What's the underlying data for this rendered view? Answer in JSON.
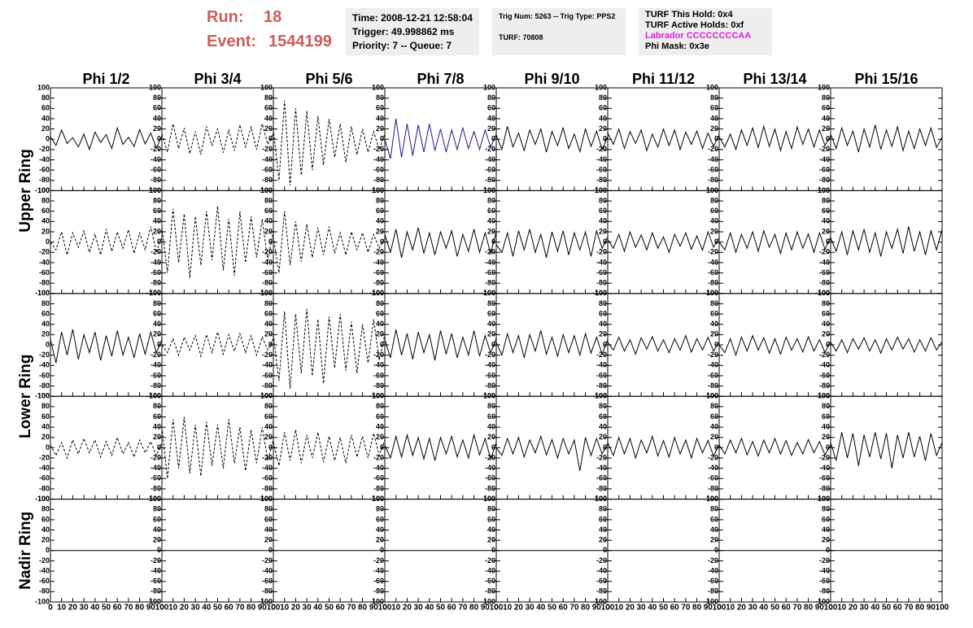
{
  "header": {
    "run_label": "Run:",
    "run": "18",
    "event_label": "Event:",
    "event": "1544199",
    "box1": [
      "Time: 2008-12-21 12:58:04",
      "Trigger: 49.998862 ms",
      "Priority: 7 -- Queue: 7"
    ],
    "box2": [
      "Trig Num: 5263 -- Trig Type: PPS2",
      "TURF: 70808"
    ],
    "box3": [
      "TURF This Hold: 0x4",
      "TURF Active Holds: 0xf",
      "Labrador CCCCCCCCAA",
      "Phi Mask: 0x3e"
    ]
  },
  "columns": [
    "Phi 1/2",
    "Phi 3/4",
    "Phi 5/6",
    "Phi 7/8",
    "Phi 9/10",
    "Phi 11/12",
    "Phi 13/14",
    "Phi 15/16"
  ],
  "rows": [
    "Upper Ring",
    "Lower Ring",
    "Nadir Ring"
  ],
  "chart_data": {
    "type": "line",
    "xlim": [
      0,
      100
    ],
    "ylim": [
      -100,
      100
    ],
    "xticks": [
      0,
      10,
      20,
      30,
      40,
      50,
      60,
      70,
      80,
      90,
      100
    ],
    "yticks": [
      -100,
      -80,
      -60,
      -40,
      -20,
      0,
      20,
      40,
      60,
      80,
      100
    ],
    "x": [
      0,
      5,
      10,
      15,
      20,
      25,
      30,
      35,
      40,
      45,
      50,
      55,
      60,
      65,
      70,
      75,
      80,
      85,
      90,
      95,
      100
    ],
    "panels": [
      {
        "color": "#000000",
        "dashed": false,
        "values": [
          5,
          -12,
          18,
          -8,
          3,
          -15,
          10,
          -20,
          14,
          -6,
          9,
          -18,
          22,
          -10,
          4,
          -14,
          19,
          -9,
          12,
          -17,
          6
        ]
      },
      {
        "color": "#000000",
        "dashed": true,
        "values": [
          10,
          -25,
          30,
          -18,
          22,
          -28,
          15,
          -30,
          25,
          -12,
          20,
          -26,
          18,
          -22,
          28,
          -15,
          24,
          -20,
          30,
          -10,
          12
        ]
      },
      {
        "color": "#000000",
        "dashed": true,
        "values": [
          20,
          -80,
          75,
          -90,
          60,
          -70,
          55,
          -60,
          45,
          -50,
          40,
          -35,
          30,
          -45,
          25,
          -30,
          20,
          -25,
          15,
          -20,
          10
        ]
      },
      {
        "color": "#1a1a8c",
        "dashed": false,
        "values": [
          0,
          -38,
          40,
          -35,
          30,
          -32,
          28,
          -25,
          30,
          -22,
          20,
          -25,
          18,
          -20,
          22,
          -18,
          15,
          -20,
          18,
          -15,
          10
        ]
      },
      {
        "color": "#000000",
        "dashed": false,
        "values": [
          8,
          -20,
          25,
          -15,
          12,
          -22,
          18,
          -10,
          20,
          -25,
          15,
          -12,
          22,
          -18,
          10,
          -24,
          20,
          -14,
          16,
          -20,
          5
        ]
      },
      {
        "color": "#000000",
        "dashed": false,
        "values": [
          12,
          -10,
          20,
          -18,
          15,
          -8,
          18,
          -22,
          10,
          -15,
          20,
          -12,
          18,
          -20,
          14,
          -10,
          16,
          -18,
          12,
          -14,
          8
        ]
      },
      {
        "color": "#000000",
        "dashed": false,
        "values": [
          5,
          -15,
          10,
          -20,
          18,
          -12,
          22,
          -16,
          25,
          -14,
          20,
          -22,
          15,
          -18,
          24,
          -10,
          20,
          -15,
          18,
          -12,
          6
        ]
      },
      {
        "color": "#000000",
        "dashed": false,
        "values": [
          10,
          -18,
          22,
          -12,
          16,
          -25,
          20,
          -15,
          28,
          -20,
          18,
          -14,
          24,
          -22,
          16,
          -18,
          20,
          -12,
          22,
          -16,
          4
        ]
      },
      {
        "color": "#000000",
        "dashed": true,
        "values": [
          0,
          -15,
          20,
          -25,
          18,
          -10,
          22,
          -20,
          15,
          -25,
          25,
          -18,
          20,
          -12,
          24,
          -22,
          18,
          -15,
          30,
          -20,
          10
        ]
      },
      {
        "color": "#000000",
        "dashed": true,
        "values": [
          30,
          -60,
          65,
          -40,
          55,
          -70,
          50,
          -45,
          60,
          -35,
          70,
          -55,
          45,
          -65,
          60,
          -40,
          50,
          -30,
          45,
          -35,
          20
        ]
      },
      {
        "color": "#000000",
        "dashed": true,
        "values": [
          10,
          -60,
          60,
          -45,
          40,
          -38,
          35,
          -30,
          28,
          -25,
          30,
          -22,
          18,
          -25,
          20,
          -15,
          18,
          -20,
          15,
          -12,
          8
        ]
      },
      {
        "color": "#000000",
        "dashed": false,
        "values": [
          15,
          -20,
          25,
          -30,
          20,
          -15,
          28,
          -22,
          18,
          -25,
          20,
          -12,
          22,
          -28,
          15,
          -18,
          25,
          -20,
          18,
          -22,
          20
        ]
      },
      {
        "color": "#000000",
        "dashed": false,
        "values": [
          -5,
          -20,
          18,
          -28,
          22,
          -15,
          25,
          -20,
          15,
          -30,
          20,
          -18,
          22,
          -25,
          18,
          -15,
          20,
          -28,
          22,
          -12,
          10
        ]
      },
      {
        "color": "#000000",
        "dashed": false,
        "values": [
          5,
          -12,
          15,
          -18,
          20,
          -10,
          14,
          -15,
          18,
          -12,
          10,
          -20,
          15,
          -8,
          18,
          -14,
          12,
          -16,
          20,
          -10,
          8
        ]
      },
      {
        "color": "#000000",
        "dashed": false,
        "values": [
          0,
          -15,
          18,
          -20,
          15,
          -12,
          20,
          -18,
          22,
          -10,
          15,
          -22,
          18,
          -15,
          20,
          -12,
          16,
          -20,
          18,
          -14,
          10
        ]
      },
      {
        "color": "#000000",
        "dashed": false,
        "values": [
          8,
          -18,
          20,
          -25,
          22,
          -15,
          25,
          -20,
          18,
          -28,
          20,
          -12,
          25,
          -22,
          30,
          -18,
          20,
          -25,
          22,
          -15,
          25
        ]
      },
      {
        "color": "#000000",
        "dashed": false,
        "values": [
          10,
          -35,
          25,
          -20,
          30,
          -28,
          20,
          -15,
          25,
          -30,
          18,
          -22,
          28,
          -20,
          15,
          -25,
          22,
          -18,
          25,
          -15,
          10
        ]
      },
      {
        "color": "#000000",
        "dashed": true,
        "values": [
          0,
          -15,
          12,
          -20,
          15,
          -10,
          18,
          -22,
          20,
          -15,
          25,
          -18,
          20,
          -12,
          22,
          -15,
          18,
          -20,
          15,
          -10,
          12
        ]
      },
      {
        "color": "#000000",
        "dashed": true,
        "values": [
          20,
          -70,
          65,
          -85,
          60,
          -55,
          70,
          -60,
          50,
          -75,
          55,
          -45,
          60,
          -50,
          45,
          -55,
          40,
          -35,
          50,
          -30,
          20
        ]
      },
      {
        "color": "#000000",
        "dashed": false,
        "values": [
          10,
          -25,
          30,
          -20,
          22,
          -28,
          25,
          -15,
          20,
          -30,
          28,
          -18,
          22,
          -25,
          15,
          -20,
          28,
          -22,
          18,
          -15,
          12
        ]
      },
      {
        "color": "#000000",
        "dashed": false,
        "values": [
          5,
          -20,
          22,
          -15,
          18,
          -25,
          20,
          -12,
          28,
          -18,
          15,
          -22,
          20,
          -15,
          18,
          -20,
          22,
          -16,
          15,
          -18,
          10
        ]
      },
      {
        "color": "#000000",
        "dashed": false,
        "values": [
          5,
          -10,
          15,
          -12,
          10,
          -18,
          14,
          -8,
          16,
          -12,
          10,
          -15,
          12,
          -10,
          18,
          -14,
          12,
          -10,
          15,
          -12,
          6
        ]
      },
      {
        "color": "#000000",
        "dashed": false,
        "values": [
          0,
          -15,
          12,
          -20,
          15,
          -12,
          18,
          -10,
          14,
          -16,
          12,
          -18,
          15,
          -10,
          12,
          -14,
          16,
          -12,
          10,
          -15,
          8
        ]
      },
      {
        "color": "#000000",
        "dashed": false,
        "values": [
          5,
          -12,
          10,
          -15,
          12,
          -8,
          14,
          -12,
          10,
          -16,
          12,
          -10,
          15,
          -8,
          12,
          -14,
          10,
          -12,
          14,
          -10,
          6
        ]
      },
      {
        "color": "#000000",
        "dashed": true,
        "values": [
          5,
          -15,
          10,
          -20,
          15,
          -12,
          18,
          -10,
          15,
          -18,
          12,
          -15,
          20,
          -12,
          10,
          -18,
          15,
          -10,
          12,
          -15,
          10
        ]
      },
      {
        "color": "#000000",
        "dashed": true,
        "values": [
          40,
          -60,
          55,
          -40,
          60,
          -50,
          45,
          -55,
          50,
          -35,
          45,
          -40,
          55,
          -30,
          40,
          -45,
          35,
          -30,
          40,
          -25,
          15
        ]
      },
      {
        "color": "#000000",
        "dashed": true,
        "values": [
          10,
          -35,
          30,
          -25,
          35,
          -30,
          25,
          -20,
          30,
          -28,
          22,
          -25,
          20,
          -30,
          25,
          -18,
          22,
          -20,
          28,
          -15,
          15
        ]
      },
      {
        "color": "#000000",
        "dashed": false,
        "values": [
          5,
          -20,
          22,
          -18,
          25,
          -15,
          20,
          -22,
          18,
          -25,
          20,
          -12,
          22,
          -18,
          15,
          -20,
          25,
          -14,
          18,
          -22,
          10
        ]
      },
      {
        "color": "#000000",
        "dashed": false,
        "values": [
          0,
          -15,
          18,
          -12,
          20,
          -18,
          15,
          -10,
          22,
          -14,
          16,
          -20,
          18,
          -12,
          15,
          -45,
          20,
          -15,
          18,
          -12,
          8
        ]
      },
      {
        "color": "#000000",
        "dashed": false,
        "values": [
          10,
          -15,
          20,
          -12,
          18,
          -20,
          15,
          -10,
          22,
          -16,
          14,
          -18,
          20,
          -12,
          15,
          -20,
          18,
          -10,
          14,
          -16,
          6
        ]
      },
      {
        "color": "#000000",
        "dashed": false,
        "values": [
          5,
          -12,
          15,
          -10,
          18,
          -14,
          12,
          -16,
          15,
          -10,
          18,
          -12,
          14,
          -15,
          10,
          -12,
          16,
          -10,
          12,
          -14,
          5
        ]
      },
      {
        "color": "#000000",
        "dashed": false,
        "values": [
          10,
          -25,
          30,
          -20,
          28,
          -35,
          25,
          -18,
          30,
          -22,
          28,
          -40,
          25,
          -20,
          30,
          -18,
          22,
          -25,
          28,
          -15,
          10
        ]
      },
      {
        "color": "#000000",
        "dashed": false,
        "values": [
          0,
          0,
          0,
          0,
          0,
          0,
          0,
          0,
          0,
          0,
          0,
          0,
          0,
          0,
          0,
          0,
          0,
          0,
          0,
          0,
          0
        ]
      },
      {
        "color": "#000000",
        "dashed": false,
        "values": [
          0,
          0,
          0,
          0,
          0,
          0,
          0,
          0,
          0,
          0,
          0,
          0,
          0,
          0,
          0,
          0,
          0,
          0,
          0,
          0,
          0
        ]
      },
      {
        "color": "#000000",
        "dashed": false,
        "values": [
          0,
          0,
          0,
          0,
          0,
          0,
          0,
          0,
          0,
          0,
          0,
          0,
          0,
          0,
          0,
          0,
          0,
          0,
          0,
          0,
          0
        ]
      },
      {
        "color": "#000000",
        "dashed": false,
        "values": [
          0,
          0,
          0,
          0,
          0,
          0,
          0,
          0,
          0,
          0,
          0,
          0,
          0,
          0,
          0,
          0,
          0,
          0,
          0,
          0,
          0
        ]
      },
      {
        "color": "#000000",
        "dashed": false,
        "values": [
          0,
          0,
          0,
          0,
          0,
          0,
          0,
          0,
          0,
          0,
          0,
          0,
          0,
          0,
          0,
          0,
          0,
          0,
          0,
          0,
          0
        ]
      },
      {
        "color": "#000000",
        "dashed": false,
        "values": [
          0,
          0,
          0,
          0,
          0,
          0,
          0,
          0,
          0,
          0,
          0,
          0,
          0,
          0,
          0,
          0,
          0,
          0,
          0,
          0,
          0
        ]
      },
      {
        "color": "#000000",
        "dashed": false,
        "values": [
          0,
          0,
          0,
          0,
          0,
          0,
          0,
          0,
          0,
          0,
          0,
          0,
          0,
          0,
          0,
          0,
          0,
          0,
          0,
          0,
          0
        ]
      },
      {
        "color": "#000000",
        "dashed": false,
        "values": [
          0,
          0,
          0,
          0,
          0,
          0,
          0,
          0,
          0,
          0,
          0,
          0,
          0,
          0,
          0,
          0,
          0,
          0,
          0,
          0,
          0
        ]
      }
    ]
  }
}
